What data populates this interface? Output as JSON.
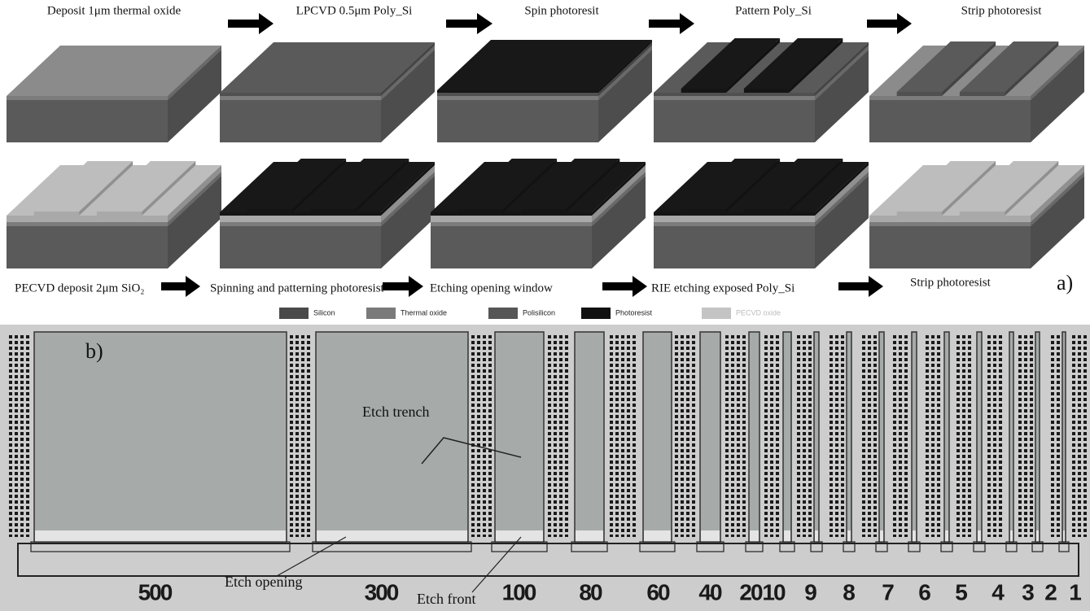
{
  "panel_a": {
    "label": "a)",
    "steps_top": [
      "Deposit 1μm thermal oxide",
      "LPCVD 0.5μm Poly_Si",
      "Spin photoresit",
      "Pattern Poly_Si",
      "Strip photoresist"
    ],
    "steps_bottom": [
      "PECVD deposit 2μm SiO₂",
      "Spinning and patterning photoresist",
      "Etching opening window",
      "RIE etching exposed Poly_Si",
      "Strip photoresist"
    ],
    "legend": [
      "Silicon",
      "Thermal oxide",
      "Polisilicon",
      "Photoresist",
      "PECVD oxide"
    ]
  },
  "panel_b": {
    "label": "b)",
    "etch_trench": "Etch trench",
    "etch_opening": "Etch opening",
    "etch_front": "Etch front",
    "width_labels": [
      "500",
      "300",
      "100",
      "80",
      "60",
      "40",
      "20",
      "10",
      "9",
      "8",
      "7",
      "6",
      "5",
      "4",
      "3",
      "2",
      "1"
    ]
  }
}
